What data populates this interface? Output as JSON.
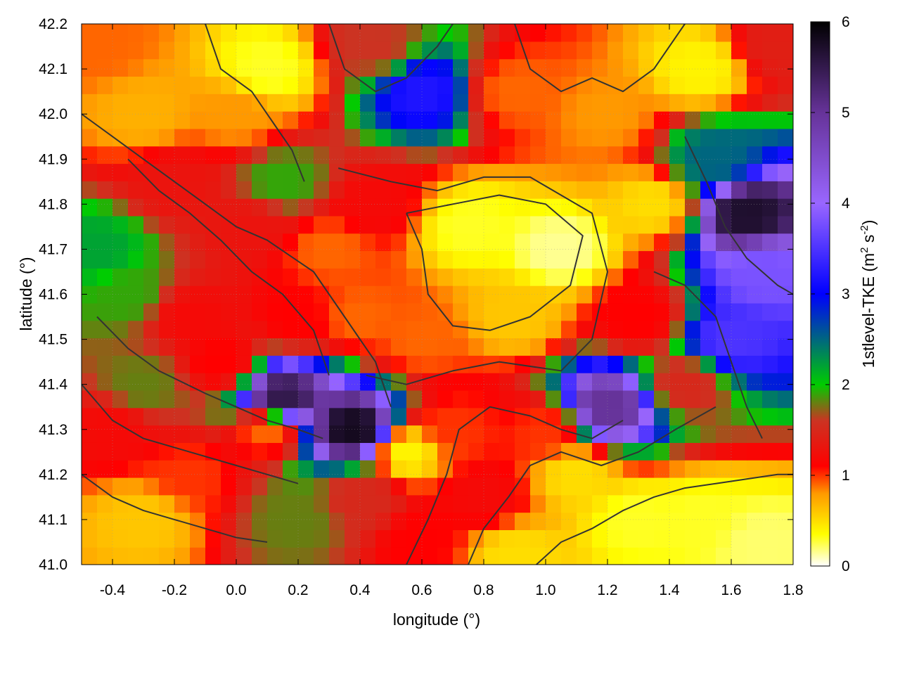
{
  "chart_data": {
    "type": "heatmap",
    "xlabel": "longitude (°)",
    "ylabel": "latitude (°)",
    "colorbar_label_main": "1stlevel-TKE (m",
    "colorbar_label_sup1": "2",
    "colorbar_label_mid": " s",
    "colorbar_label_sup2": "-2",
    "colorbar_label_end": ")",
    "xlim": [
      -0.5,
      1.8
    ],
    "ylim": [
      41.0,
      42.2
    ],
    "x_ticks": [
      "-0.4",
      "-0.2",
      "0.0",
      "0.2",
      "0.4",
      "0.6",
      "0.8",
      "1.0",
      "1.2",
      "1.4",
      "1.6",
      "1.8"
    ],
    "x_tick_values": [
      -0.4,
      -0.2,
      0.0,
      0.2,
      0.4,
      0.6,
      0.8,
      1.0,
      1.2,
      1.4,
      1.6,
      1.8
    ],
    "y_ticks": [
      "41.0",
      "41.1",
      "41.2",
      "41.3",
      "41.4",
      "41.5",
      "41.6",
      "41.7",
      "41.8",
      "41.9",
      "42.0",
      "42.1",
      "42.2"
    ],
    "y_tick_values": [
      41.0,
      41.1,
      41.2,
      41.3,
      41.4,
      41.5,
      41.6,
      41.7,
      41.8,
      41.9,
      42.0,
      42.1,
      42.2
    ],
    "colorbar_range": [
      0,
      6
    ],
    "colorbar_ticks": [
      "0",
      "1",
      "2",
      "3",
      "4",
      "5",
      "6"
    ],
    "colorbar_tick_values": [
      0,
      1,
      2,
      3,
      4,
      5,
      6
    ],
    "colorscale": [
      {
        "v": 0.0,
        "c": "#ffffff"
      },
      {
        "v": 0.35,
        "c": "#ffff00"
      },
      {
        "v": 0.8,
        "c": "#ff9900"
      },
      {
        "v": 1.1,
        "c": "#ff0000"
      },
      {
        "v": 1.6,
        "c": "#cc3322"
      },
      {
        "v": 2.0,
        "c": "#00cc00"
      },
      {
        "v": 3.0,
        "c": "#0000ff"
      },
      {
        "v": 4.0,
        "c": "#9966ff"
      },
      {
        "v": 5.0,
        "c": "#663399"
      },
      {
        "v": 6.0,
        "c": "#000000"
      }
    ],
    "field_samples": [
      {
        "lon": -0.45,
        "lat": 42.15,
        "tke": 0.9
      },
      {
        "lon": -0.3,
        "lat": 42.0,
        "tke": 0.7
      },
      {
        "lon": -0.2,
        "lat": 41.85,
        "tke": 1.3
      },
      {
        "lon": -0.45,
        "lat": 41.7,
        "tke": 2.2
      },
      {
        "lon": -0.35,
        "lat": 41.6,
        "tke": 1.9
      },
      {
        "lon": -0.15,
        "lat": 41.55,
        "tke": 1.2
      },
      {
        "lon": 0.05,
        "lat": 41.75,
        "tke": 1.3
      },
      {
        "lon": 0.15,
        "lat": 41.85,
        "tke": 1.9
      },
      {
        "lon": 0.3,
        "lat": 41.7,
        "tke": 0.9
      },
      {
        "lon": 0.45,
        "lat": 41.8,
        "tke": 1.2
      },
      {
        "lon": 0.75,
        "lat": 41.75,
        "tke": 0.3
      },
      {
        "lon": 1.05,
        "lat": 41.7,
        "tke": 0.15
      },
      {
        "lon": 0.9,
        "lat": 41.55,
        "tke": 0.6
      },
      {
        "lon": 0.6,
        "lat": 41.5,
        "tke": 0.9
      },
      {
        "lon": 0.4,
        "lat": 41.55,
        "tke": 0.9
      },
      {
        "lon": 0.2,
        "lat": 41.55,
        "tke": 1.1
      },
      {
        "lon": -0.05,
        "lat": 41.45,
        "tke": 1.1
      },
      {
        "lon": -0.3,
        "lat": 41.4,
        "tke": 1.8
      },
      {
        "lon": -0.4,
        "lat": 41.3,
        "tke": 1.2
      },
      {
        "lon": -0.15,
        "lat": 41.2,
        "tke": 1.0
      },
      {
        "lon": 0.1,
        "lat": 41.3,
        "tke": 0.9
      },
      {
        "lon": 0.15,
        "lat": 41.37,
        "tke": 5.5
      },
      {
        "lon": 0.38,
        "lat": 41.3,
        "tke": 5.8
      },
      {
        "lon": 0.4,
        "lat": 41.15,
        "tke": 1.5
      },
      {
        "lon": 0.2,
        "lat": 41.1,
        "tke": 1.8
      },
      {
        "lon": -0.3,
        "lat": 41.1,
        "tke": 0.6
      },
      {
        "lon": 0.55,
        "lat": 41.25,
        "tke": 0.4
      },
      {
        "lon": 0.7,
        "lat": 41.3,
        "tke": 1.0
      },
      {
        "lon": 0.8,
        "lat": 41.15,
        "tke": 1.2
      },
      {
        "lon": 1.0,
        "lat": 41.3,
        "tke": 1.0
      },
      {
        "lon": 1.2,
        "lat": 41.35,
        "tke": 5.0
      },
      {
        "lon": 1.1,
        "lat": 41.2,
        "tke": 0.5
      },
      {
        "lon": 1.45,
        "lat": 41.4,
        "tke": 1.5
      },
      {
        "lon": 1.6,
        "lat": 41.5,
        "tke": 3.5
      },
      {
        "lon": 1.7,
        "lat": 41.65,
        "tke": 3.8
      },
      {
        "lon": 1.65,
        "lat": 41.78,
        "tke": 5.7
      },
      {
        "lon": 1.55,
        "lat": 41.9,
        "tke": 2.5
      },
      {
        "lon": 1.35,
        "lat": 41.8,
        "tke": 0.5
      },
      {
        "lon": 1.2,
        "lat": 42.0,
        "tke": 0.8
      },
      {
        "lon": 0.9,
        "lat": 42.05,
        "tke": 0.9
      },
      {
        "lon": 0.6,
        "lat": 42.05,
        "tke": 3.2
      },
      {
        "lon": 0.45,
        "lat": 42.15,
        "tke": 1.6
      },
      {
        "lon": 0.1,
        "lat": 42.1,
        "tke": 0.3
      },
      {
        "lon": 0.0,
        "lat": 42.0,
        "tke": 0.8
      },
      {
        "lon": 1.5,
        "lat": 42.1,
        "tke": 0.4
      },
      {
        "lon": 1.75,
        "lat": 42.15,
        "tke": 1.4
      },
      {
        "lon": 1.3,
        "lat": 41.55,
        "tke": 1.1
      },
      {
        "lon": 1.5,
        "lat": 41.1,
        "tke": 0.3
      },
      {
        "lon": 1.7,
        "lat": 41.05,
        "tke": 0.2
      },
      {
        "lon": 1.3,
        "lat": 41.1,
        "tke": 0.3
      },
      {
        "lon": 0.9,
        "lat": 41.02,
        "tke": 0.5
      },
      {
        "lon": 0.6,
        "lat": 41.05,
        "tke": 1.1
      }
    ],
    "contour_lines": [
      [
        [
          -0.5,
          42.0
        ],
        [
          -0.4,
          41.95
        ],
        [
          -0.3,
          41.9
        ],
        [
          -0.2,
          41.85
        ],
        [
          -0.1,
          41.8
        ],
        [
          0.0,
          41.75
        ],
        [
          0.1,
          41.72
        ],
        [
          0.25,
          41.65
        ],
        [
          0.35,
          41.55
        ],
        [
          0.45,
          41.45
        ],
        [
          0.5,
          41.35
        ]
      ],
      [
        [
          -0.35,
          41.9
        ],
        [
          -0.25,
          41.83
        ],
        [
          -0.15,
          41.78
        ],
        [
          -0.05,
          41.72
        ],
        [
          0.05,
          41.65
        ],
        [
          0.15,
          41.6
        ],
        [
          0.25,
          41.52
        ],
        [
          0.3,
          41.42
        ]
      ],
      [
        [
          0.55,
          41.78
        ],
        [
          0.7,
          41.8
        ],
        [
          0.85,
          41.82
        ],
        [
          1.0,
          41.8
        ],
        [
          1.12,
          41.73
        ],
        [
          1.08,
          41.62
        ],
        [
          0.95,
          41.55
        ],
        [
          0.82,
          41.52
        ],
        [
          0.7,
          41.53
        ],
        [
          0.62,
          41.6
        ],
        [
          0.6,
          41.7
        ],
        [
          0.55,
          41.78
        ]
      ],
      [
        [
          0.33,
          41.88
        ],
        [
          0.5,
          41.85
        ],
        [
          0.65,
          41.83
        ],
        [
          0.8,
          41.86
        ],
        [
          0.95,
          41.86
        ],
        [
          1.15,
          41.78
        ],
        [
          1.2,
          41.65
        ],
        [
          1.15,
          41.5
        ],
        [
          1.05,
          41.43
        ],
        [
          0.85,
          41.45
        ],
        [
          0.7,
          41.43
        ],
        [
          0.55,
          41.4
        ],
        [
          0.42,
          41.42
        ]
      ],
      [
        [
          -0.45,
          41.55
        ],
        [
          -0.35,
          41.48
        ],
        [
          -0.25,
          41.43
        ],
        [
          -0.1,
          41.38
        ],
        [
          0.0,
          41.35
        ],
        [
          0.1,
          41.32
        ],
        [
          0.2,
          41.3
        ],
        [
          0.28,
          41.28
        ]
      ],
      [
        [
          -0.5,
          41.4
        ],
        [
          -0.4,
          41.32
        ],
        [
          -0.3,
          41.28
        ],
        [
          -0.15,
          41.25
        ],
        [
          0.0,
          41.22
        ],
        [
          0.1,
          41.2
        ],
        [
          0.2,
          41.18
        ]
      ],
      [
        [
          -0.5,
          41.2
        ],
        [
          -0.4,
          41.15
        ],
        [
          -0.3,
          41.12
        ],
        [
          -0.2,
          41.1
        ],
        [
          -0.1,
          41.08
        ],
        [
          0.0,
          41.06
        ],
        [
          0.1,
          41.05
        ]
      ],
      [
        [
          0.55,
          41.0
        ],
        [
          0.62,
          41.1
        ],
        [
          0.68,
          41.2
        ],
        [
          0.72,
          41.3
        ],
        [
          0.82,
          41.35
        ],
        [
          0.95,
          41.33
        ],
        [
          1.05,
          41.3
        ],
        [
          1.15,
          41.28
        ],
        [
          1.25,
          41.32
        ]
      ],
      [
        [
          0.75,
          41.0
        ],
        [
          0.8,
          41.08
        ],
        [
          0.88,
          41.15
        ],
        [
          0.95,
          41.22
        ],
        [
          1.05,
          41.25
        ],
        [
          1.18,
          41.22
        ],
        [
          1.3,
          41.25
        ],
        [
          1.42,
          41.3
        ],
        [
          1.55,
          41.35
        ]
      ],
      [
        [
          0.97,
          41.0
        ],
        [
          1.05,
          41.05
        ],
        [
          1.15,
          41.08
        ],
        [
          1.25,
          41.12
        ],
        [
          1.35,
          41.15
        ],
        [
          1.45,
          41.17
        ],
        [
          1.55,
          41.18
        ],
        [
          1.65,
          41.19
        ],
        [
          1.75,
          41.2
        ],
        [
          1.8,
          41.2
        ]
      ],
      [
        [
          0.3,
          42.2
        ],
        [
          0.35,
          42.1
        ],
        [
          0.45,
          42.05
        ],
        [
          0.55,
          42.08
        ],
        [
          0.65,
          42.15
        ],
        [
          0.7,
          42.2
        ]
      ],
      [
        [
          0.9,
          42.2
        ],
        [
          0.95,
          42.1
        ],
        [
          1.05,
          42.05
        ],
        [
          1.15,
          42.08
        ],
        [
          1.25,
          42.05
        ],
        [
          1.35,
          42.1
        ],
        [
          1.45,
          42.2
        ]
      ],
      [
        [
          -0.1,
          42.2
        ],
        [
          -0.05,
          42.1
        ],
        [
          0.05,
          42.05
        ],
        [
          0.12,
          41.98
        ],
        [
          0.18,
          41.92
        ],
        [
          0.22,
          41.85
        ]
      ],
      [
        [
          1.35,
          41.65
        ],
        [
          1.45,
          41.62
        ],
        [
          1.55,
          41.55
        ],
        [
          1.6,
          41.45
        ],
        [
          1.65,
          41.35
        ],
        [
          1.7,
          41.28
        ]
      ],
      [
        [
          1.45,
          41.95
        ],
        [
          1.52,
          41.85
        ],
        [
          1.58,
          41.75
        ],
        [
          1.65,
          41.68
        ],
        [
          1.75,
          41.62
        ],
        [
          1.8,
          41.6
        ]
      ]
    ]
  }
}
